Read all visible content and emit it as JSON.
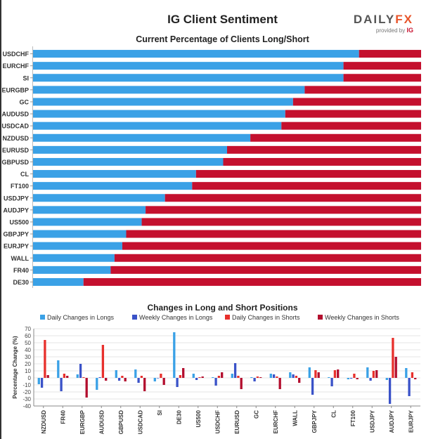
{
  "header": {
    "title": "IG Client Sentiment",
    "logo_text_main": "DAILY",
    "logo_text_fx": "FX",
    "logo_sub": "provided by",
    "logo_ig": "IG"
  },
  "colors": {
    "long": "#3aa1e6",
    "short": "#c4102e",
    "weekly_long": "#3a52c8",
    "daily_short": "#e8302c",
    "weekly_short": "#b30e2e"
  },
  "chart_data": [
    {
      "type": "bar",
      "orientation": "horizontal",
      "stacked": true,
      "title": "Current Percentage of Clients Long/Short",
      "categories": [
        "USDCHF",
        "EURCHF",
        "SI",
        "EURGBP",
        "GC",
        "AUDUSD",
        "USDCAD",
        "NZDUSD",
        "EURUSD",
        "GBPUSD",
        "CL",
        "FT100",
        "USDJPY",
        "AUDJPY",
        "US500",
        "GBPJPY",
        "EURJPY",
        "WALL",
        "FR40",
        "DE30"
      ],
      "series": [
        {
          "name": "Long",
          "values": [
            84,
            80,
            80,
            70,
            67,
            65,
            64,
            56,
            50,
            49,
            42,
            41,
            34,
            29,
            28,
            24,
            23,
            21,
            20,
            13
          ]
        },
        {
          "name": "Short",
          "values": [
            16,
            20,
            20,
            30,
            33,
            35,
            36,
            44,
            50,
            51,
            58,
            59,
            66,
            71,
            72,
            76,
            77,
            79,
            80,
            87
          ]
        }
      ],
      "xlim": [
        0,
        100
      ]
    },
    {
      "type": "bar",
      "title": "Changes in Long and Short Positions",
      "ylabel": "Percentage Change (%)",
      "ylim": [
        -40,
        70
      ],
      "yticks": [
        70,
        60,
        50,
        40,
        30,
        20,
        10,
        0,
        -10,
        -20,
        -30,
        -40
      ],
      "legend_placement": "top",
      "categories": [
        "NZDUSD",
        "FR40",
        "EURGBP",
        "AUDUSD",
        "GBPUSD",
        "USDCAD",
        "SI",
        "DE30",
        "US500",
        "USDCHF",
        "EURUSD",
        "GC",
        "EURCHF",
        "WALL",
        "GBPJPY",
        "CL",
        "FT100",
        "USDJPY",
        "AUDJPY",
        "EURJPY"
      ],
      "series": [
        {
          "name": "Daily Changes in Longs",
          "values": [
            -9,
            25,
            5,
            -17,
            11,
            12,
            -5,
            65,
            6,
            1,
            6,
            1,
            6,
            8,
            15,
            1,
            -2,
            15,
            -3,
            14
          ]
        },
        {
          "name": "Weekly Changes in Longs",
          "values": [
            -14,
            -19,
            20,
            1,
            -4,
            -7,
            0,
            -13,
            -3,
            -11,
            21,
            -5,
            5,
            5,
            -24,
            -12,
            -1,
            -4,
            -37,
            -26
          ]
        },
        {
          "name": "Daily Changes in Shorts",
          "values": [
            54,
            6,
            1,
            47,
            3,
            3,
            6,
            4,
            1,
            3,
            3,
            2,
            2,
            3,
            11,
            11,
            6,
            10,
            57,
            8
          ]
        },
        {
          "name": "Weekly Changes in Shorts",
          "values": [
            4,
            3,
            -28,
            -4,
            -5,
            -19,
            -10,
            14,
            2,
            8,
            -16,
            1,
            -16,
            -7,
            8,
            12,
            -2,
            11,
            30,
            -2
          ]
        }
      ]
    }
  ]
}
